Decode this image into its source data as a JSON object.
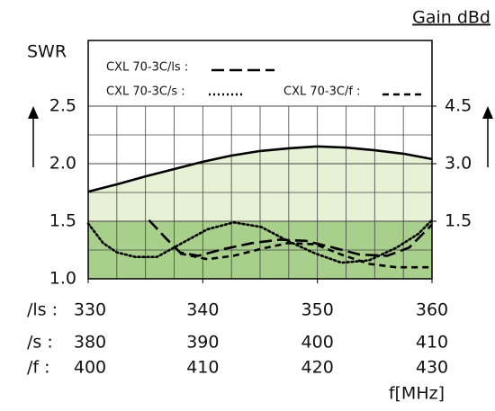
{
  "chart_data": {
    "type": "line",
    "y_label": "SWR",
    "y2_label": "Gain dBd",
    "x_label": "f[MHz]",
    "ylim": [
      1,
      2.5
    ],
    "yticks": [
      {
        "value": 1,
        "label": "1.0"
      },
      1.5,
      {
        "value": 2,
        "label": "2.0"
      },
      2.5
    ],
    "y2lim": [
      0,
      4.5
    ],
    "y2ticks": [
      1.5,
      {
        "value": 3,
        "label": "3.0"
      },
      4.5
    ],
    "grid": true,
    "x_axes": [
      {
        "name": "/ls :",
        "xlim": [
          330,
          360
        ],
        "xticks": [
          330,
          340,
          350,
          360
        ]
      },
      {
        "name": "/s :",
        "xlim": [
          380,
          410
        ],
        "xticks": [
          380,
          390,
          400,
          410
        ]
      },
      {
        "name": "/f :",
        "xlim": [
          400,
          430
        ],
        "xticks": [
          400,
          410,
          420,
          430
        ]
      }
    ],
    "series": [
      {
        "axis": "y2",
        "style": "solid",
        "color": "#000000",
        "fill": "#e6f1d6",
        "x": [
          330,
          332.5,
          335,
          337.5,
          340,
          342.5,
          345,
          347.5,
          350,
          352.5,
          355,
          357.5,
          360
        ],
        "values": [
          2.27,
          2.46,
          2.67,
          2.86,
          3.05,
          3.21,
          3.33,
          3.4,
          3.45,
          3.42,
          3.35,
          3.26,
          3.12
        ]
      },
      {
        "name": "CXL 70-3C/ls :",
        "style": "longdash",
        "color": "#000000",
        "x": [
          335.3,
          336.8,
          338.0,
          339.6,
          341.9,
          344.3,
          346.7,
          349.0,
          351.4,
          353.7,
          356.1,
          358.0,
          360
        ],
        "values": [
          1.51,
          1.35,
          1.23,
          1.2,
          1.26,
          1.31,
          1.34,
          1.33,
          1.27,
          1.21,
          1.2,
          1.27,
          1.47
        ]
      },
      {
        "name": "CXL 70-3C/s :",
        "style": "dotted",
        "color": "#000000",
        "x": [
          330,
          331.3,
          332.5,
          334.1,
          336.0,
          338.0,
          340.4,
          342.7,
          345.1,
          347.4,
          349.8,
          352.1,
          354.5,
          356.9,
          358.8,
          360
        ],
        "values": [
          1.48,
          1.31,
          1.23,
          1.19,
          1.19,
          1.3,
          1.43,
          1.49,
          1.45,
          1.33,
          1.22,
          1.14,
          1.16,
          1.27,
          1.39,
          1.51
        ]
      },
      {
        "name": "CXL 70-3C/f :",
        "style": "dashed",
        "color": "#000000",
        "x": [
          338.0,
          340.4,
          342.7,
          345.1,
          347.4,
          349.8,
          352.1,
          354.5,
          356.9,
          360
        ],
        "values": [
          1.22,
          1.17,
          1.2,
          1.26,
          1.31,
          1.3,
          1.21,
          1.13,
          1.1,
          1.1
        ]
      }
    ]
  }
}
